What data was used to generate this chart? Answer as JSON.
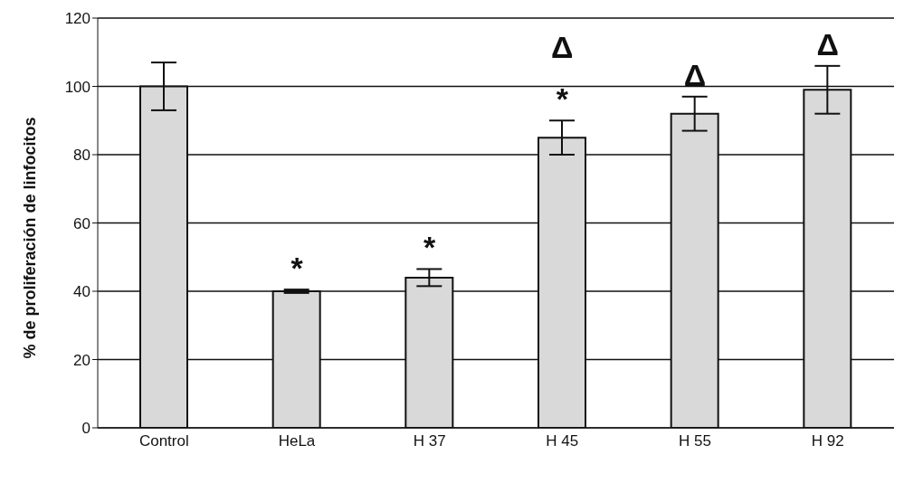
{
  "chart_data": {
    "type": "bar",
    "ylabel": "% de proliferación de linfocitos",
    "categories": [
      "Control",
      "HeLa",
      "H 37",
      "H 45",
      "H 55",
      "H 92"
    ],
    "values": [
      100,
      40,
      44,
      85,
      92,
      99
    ],
    "errors": [
      7,
      0.5,
      2.5,
      5,
      5,
      7
    ],
    "color": "#d9d9d9",
    "ylim": [
      0,
      120
    ],
    "yticks": [
      0,
      20,
      40,
      60,
      80,
      100,
      120
    ],
    "grid": "y",
    "annotations": [
      "*",
      "*",
      "*",
      "Δ",
      "Δ",
      "Δ"
    ]
  }
}
